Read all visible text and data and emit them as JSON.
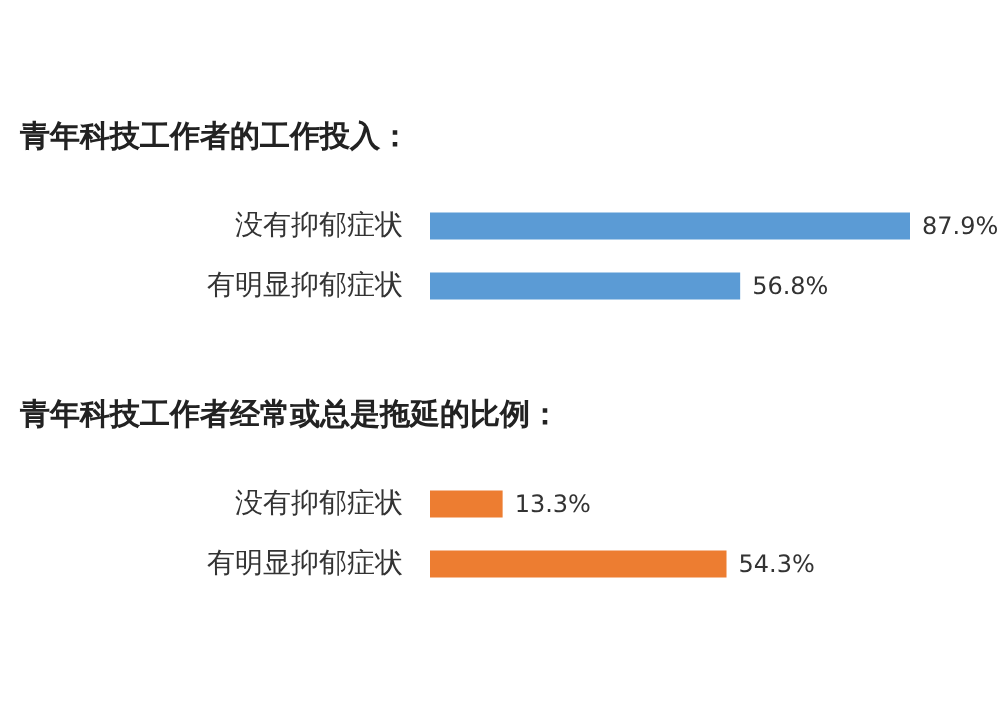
{
  "chart_data": [
    {
      "type": "bar",
      "orientation": "horizontal",
      "title": "青年科技工作者的工作投入：",
      "categories": [
        "没有抑郁症状",
        "有明显抑郁症状"
      ],
      "values": [
        87.9,
        56.8
      ],
      "value_labels": [
        "87.9%",
        "56.8%"
      ],
      "colors": [
        "#5b9bd5",
        "#5b9bd5"
      ]
    },
    {
      "type": "bar",
      "orientation": "horizontal",
      "title": "青年科技工作者经常或总是拖延的比例：",
      "categories": [
        "没有抑郁症状",
        "有明显抑郁症状"
      ],
      "values": [
        13.3,
        54.3
      ],
      "value_labels": [
        "13.3%",
        "54.3%"
      ],
      "colors": [
        "#ed7d31",
        "#ed7d31"
      ]
    }
  ]
}
